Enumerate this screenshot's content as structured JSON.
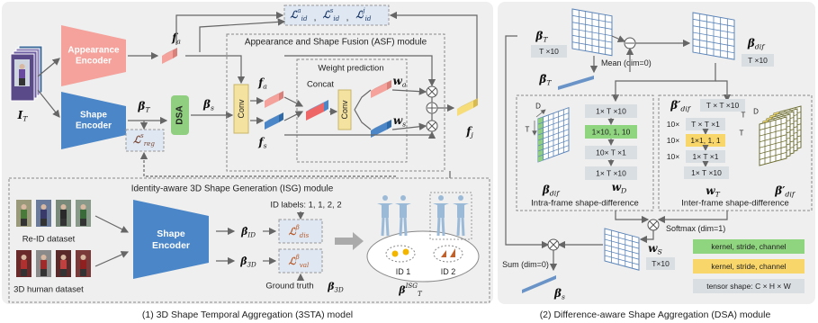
{
  "left": {
    "caption": "(1) 3D Shape Temporal Aggregation (3STA) model",
    "input": {
      "base": "I",
      "sub": "T"
    },
    "appearance_encoder": [
      "Appearance",
      "Encoder"
    ],
    "shape_encoder": [
      "Shape",
      "Encoder"
    ],
    "f_a": {
      "base": "f",
      "sub": "a"
    },
    "beta_T": {
      "base": "β",
      "sub": "T"
    },
    "dsa": "DSA",
    "beta_s": {
      "base": "β",
      "sub": "s"
    },
    "reg_loss": {
      "base": "ℒ",
      "sup": "s",
      "sub": "reg"
    },
    "id_losses": {
      "terms": [
        {
          "base": "ℒ",
          "sup": "a",
          "sub": "id"
        },
        {
          "base": "ℒ",
          "sup": "s",
          "sub": "id"
        },
        {
          "base": "ℒ",
          "sup": "j",
          "sub": "id"
        }
      ],
      "separator": ","
    },
    "asf": {
      "title": "Appearance and Shape Fusion (ASF) module",
      "conv": "Conv",
      "f_a": {
        "base": "f",
        "sub": "a"
      },
      "f_s": {
        "base": "f",
        "sub": "s"
      },
      "weight_prediction": "Weight prediction",
      "concat": "Concat",
      "w_a": {
        "base": "w",
        "sub": "a"
      },
      "w_s": {
        "base": "w",
        "sub": "s"
      },
      "f_j": {
        "base": "f",
        "sub": "j"
      }
    },
    "isg": {
      "title": "Identity-aware 3D Shape Generation (ISG) module",
      "reid_dataset": "Re-ID dataset",
      "human_dataset": "3D human dataset",
      "shape_encoder": [
        "Shape",
        "Encoder"
      ],
      "beta_id": {
        "base": "β̂",
        "sub": "ID"
      },
      "beta_3d": {
        "base": "β̂",
        "sub": "3D"
      },
      "dis_loss": {
        "base": "ℒ",
        "sup": "β",
        "sub": "dis"
      },
      "val_loss": {
        "base": "ℒ",
        "sup": "β",
        "sub": "val"
      },
      "id_labels": "ID labels: 1, 1, 2, 2",
      "ground_truth": "Ground truth",
      "gt_beta": {
        "base": "β",
        "sub": "3D"
      },
      "id1": "ID 1",
      "id2": "ID 2",
      "beta_isg": {
        "base": "β",
        "sup": "ISG",
        "sub": "T"
      }
    }
  },
  "right": {
    "caption": "(2) Difference-aware Shape Aggregation (DSA) module",
    "beta_T": {
      "base": "β",
      "sub": "T"
    },
    "beta_T_shape": "T ×10",
    "mean": "Mean (dim=0)",
    "beta_bar": {
      "base": "β̄",
      "sub": "T"
    },
    "beta_dif": {
      "base": "β",
      "sub": "dif"
    },
    "beta_dif_shape": "T ×10",
    "intra": {
      "rows": [
        "1× T ×10",
        "1×10, 1, 10",
        "10× T ×1",
        "1× T ×10"
      ],
      "beta_dif": {
        "base": "β",
        "sub": "dif"
      },
      "w_D": {
        "base": "w",
        "sub": "D"
      },
      "axis_d": "D",
      "axis_t": "T",
      "title": "Intra-frame shape-difference"
    },
    "inter": {
      "beta_dif": {
        "base": "β′",
        "sub": "dif"
      },
      "top_shape": "T × T ×10",
      "prefix": "10×",
      "rows": [
        "T × T ×1",
        "1×1, 1, 1",
        "1× T ×1"
      ],
      "bottom_shape": "1× T ×10",
      "w_T": {
        "base": "w",
        "sub": "T"
      },
      "cube_label": {
        "base": "β′",
        "sub": "dif"
      },
      "axis_t": "T",
      "axis_d": "D",
      "title": "Inter-frame shape-difference"
    },
    "softmax": "Softmax (dim=1)",
    "sum": "Sum (dim=0)",
    "w_S": {
      "base": "w",
      "sub": "S"
    },
    "w_S_shape": "T×10",
    "beta_s": {
      "base": "β",
      "sub": "s"
    },
    "legend": [
      "kernel, stride, channel",
      "kernel, stride, channel",
      "tensor shape: C × H × W"
    ]
  }
}
